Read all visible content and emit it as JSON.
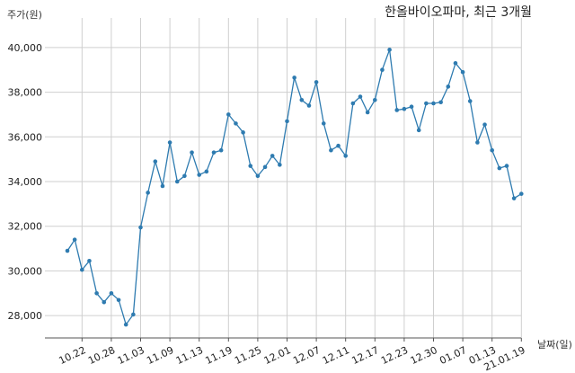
{
  "chart_data": {
    "type": "line",
    "title": "한올바이오파마, 최근 3개월",
    "ylabel": "주가(원)",
    "xlabel": "날짜(일)",
    "ylim": [
      27000,
      41000
    ],
    "yticks": [
      28000,
      30000,
      32000,
      34000,
      36000,
      38000,
      40000
    ],
    "ytick_labels": [
      "28,000",
      "30,000",
      "32,000",
      "34,000",
      "36,000",
      "38,000",
      "40,000"
    ],
    "grid": true,
    "line_color": "#2e7bb0",
    "xticks": [
      {
        "index": 2,
        "label": "10.22"
      },
      {
        "index": 6,
        "label": "10.28"
      },
      {
        "index": 10,
        "label": "11.03"
      },
      {
        "index": 14,
        "label": "11.09"
      },
      {
        "index": 18,
        "label": "11.13"
      },
      {
        "index": 22,
        "label": "11.19"
      },
      {
        "index": 26,
        "label": "11.25"
      },
      {
        "index": 30,
        "label": "12.01"
      },
      {
        "index": 34,
        "label": "12.07"
      },
      {
        "index": 38,
        "label": "12.11"
      },
      {
        "index": 42,
        "label": "12.17"
      },
      {
        "index": 46,
        "label": "12.23"
      },
      {
        "index": 50,
        "label": "12.30"
      },
      {
        "index": 54,
        "label": "01.07"
      },
      {
        "index": 58,
        "label": "01.13"
      },
      {
        "index": 62,
        "label": "21.01.19"
      }
    ],
    "values": [
      30900,
      31400,
      30050,
      30450,
      29000,
      28600,
      29000,
      28700,
      27600,
      28050,
      31950,
      33500,
      34900,
      33800,
      35750,
      34000,
      34250,
      35300,
      34300,
      34450,
      35300,
      35400,
      37000,
      36600,
      36200,
      34700,
      34250,
      34650,
      35150,
      34750,
      36700,
      38650,
      37650,
      37400,
      38450,
      36600,
      35400,
      35600,
      35150,
      37500,
      37800,
      37100,
      37650,
      39000,
      39900,
      37200,
      37250,
      37350,
      36300,
      37500,
      37500,
      37550,
      38250,
      39300,
      38900,
      37600,
      35750,
      36550,
      35400,
      34600,
      34700,
      33250,
      33450
    ]
  }
}
